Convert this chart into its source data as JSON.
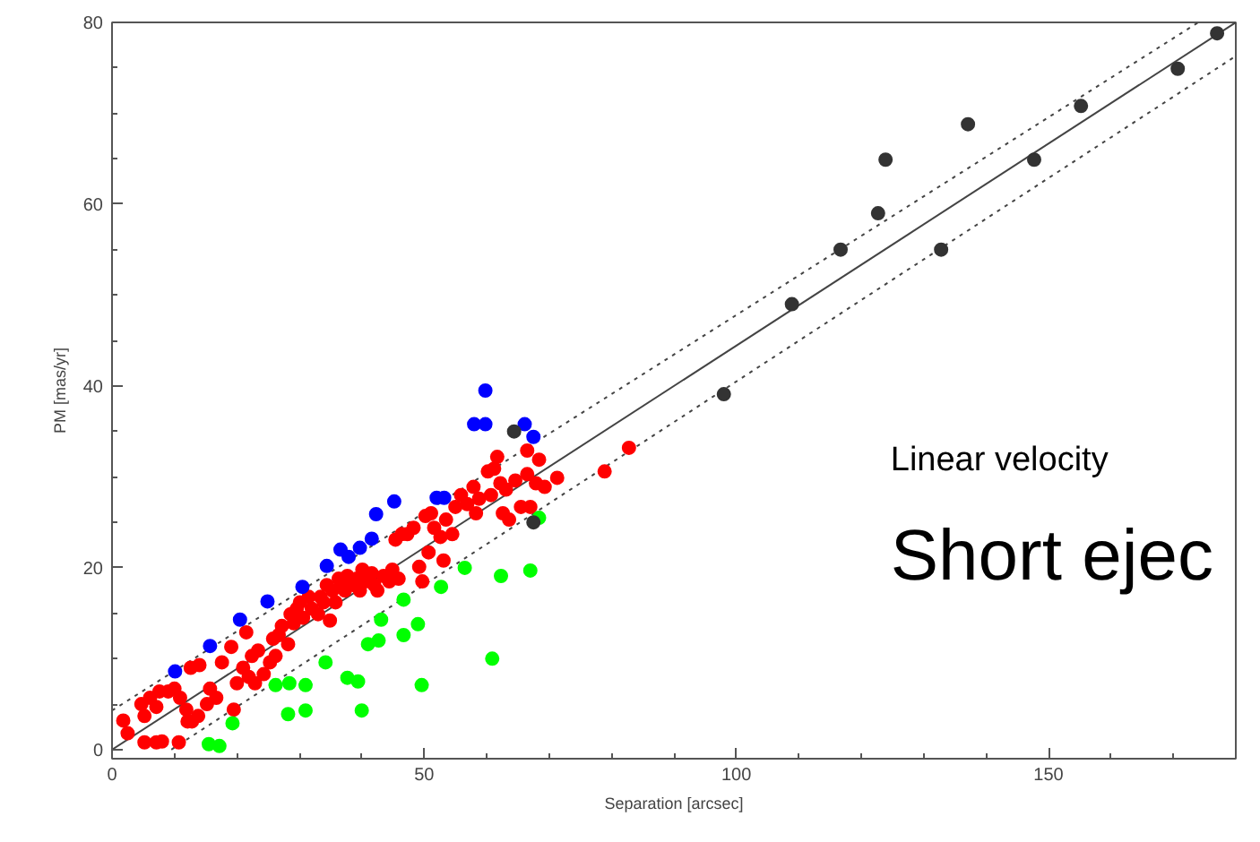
{
  "chart_data": {
    "type": "scatter",
    "xlabel": "Separation [arcsec]",
    "ylabel": "PM [mas/yr]",
    "xlim": [
      0,
      180
    ],
    "ylim": [
      -1,
      80
    ],
    "xticks": [
      0,
      50,
      100,
      150
    ],
    "yticks": [
      0,
      20,
      40,
      60,
      80
    ],
    "grid": false,
    "marker": "circle",
    "annotations": [
      "Linear velocity",
      "Short ejec"
    ],
    "series": [
      {
        "type": "line",
        "color": "#444444",
        "line_style": "solid",
        "marker": "none",
        "x": [
          0,
          180
        ],
        "values": [
          0,
          80
        ]
      },
      {
        "type": "line",
        "color": "#444444",
        "line_style": "dotted",
        "marker": "none",
        "x": [
          0,
          174
        ],
        "values": [
          4.3,
          80
        ]
      },
      {
        "type": "line",
        "color": "#444444",
        "line_style": "dotted",
        "marker": "none",
        "x": [
          9.5,
          180
        ],
        "values": [
          0,
          76.3
        ]
      },
      {
        "color": "#ff0000",
        "x": [
          1.8,
          2.5,
          4.7,
          5.2,
          6.1,
          7.1,
          7.6,
          9.0,
          10.0,
          10.9,
          5.2,
          7.1,
          8.0,
          10.7,
          11.9,
          12.8,
          13.8,
          12.6,
          14.0,
          12.1,
          15.2,
          15.7,
          16.7,
          17.6,
          19.1,
          19.5,
          20.0,
          21.0,
          21.5,
          21.9,
          22.4,
          22.9,
          23.4,
          24.3,
          25.3,
          25.8,
          26.2,
          26.7,
          27.2,
          28.2,
          28.6,
          29.1,
          29.6,
          30.1,
          30.6,
          31.5,
          32.0,
          33.0,
          33.4,
          33.9,
          34.4,
          34.9,
          35.3,
          35.8,
          36.3,
          36.8,
          37.3,
          37.7,
          38.7,
          39.2,
          39.7,
          40.1,
          40.6,
          41.6,
          42.0,
          42.5,
          43.5,
          44.4,
          44.9,
          45.9,
          45.4,
          46.4,
          47.3,
          48.3,
          49.2,
          49.7,
          50.2,
          50.7,
          51.1,
          51.6,
          52.6,
          53.1,
          53.5,
          54.5,
          55.0,
          55.9,
          56.9,
          57.9,
          58.3,
          58.8,
          60.2,
          60.7,
          61.2,
          61.7,
          62.2,
          62.6,
          63.1,
          63.6,
          64.6,
          65.5,
          66.5,
          66.5,
          67.0,
          67.9,
          68.4,
          69.3,
          71.3,
          78.9,
          82.8
        ],
        "values": [
          3.2,
          1.8,
          5.0,
          3.7,
          5.7,
          4.7,
          6.4,
          6.4,
          6.7,
          5.7,
          0.8,
          0.8,
          0.9,
          0.8,
          4.4,
          3.1,
          3.7,
          9.0,
          9.3,
          3.1,
          5.0,
          6.7,
          5.7,
          9.6,
          11.3,
          4.4,
          7.3,
          9.0,
          12.9,
          8.0,
          10.3,
          7.3,
          10.9,
          8.3,
          9.6,
          12.2,
          10.3,
          12.6,
          13.6,
          11.6,
          14.9,
          13.9,
          15.5,
          16.2,
          14.5,
          16.8,
          15.5,
          14.9,
          16.8,
          16.2,
          18.1,
          14.2,
          17.5,
          16.2,
          18.8,
          18.1,
          17.5,
          19.1,
          18.1,
          18.8,
          17.5,
          19.8,
          18.5,
          19.4,
          18.1,
          17.5,
          19.1,
          18.5,
          19.8,
          18.8,
          23.1,
          23.7,
          23.7,
          24.4,
          20.1,
          18.5,
          25.7,
          21.7,
          26.0,
          24.4,
          23.4,
          20.8,
          25.3,
          23.7,
          26.7,
          28.0,
          27.0,
          28.9,
          26.0,
          27.6,
          30.6,
          28.0,
          30.9,
          32.2,
          29.3,
          26.0,
          28.6,
          25.3,
          29.6,
          26.7,
          30.3,
          32.9,
          26.7,
          29.3,
          31.9,
          28.9,
          29.9,
          30.6,
          33.2
        ]
      },
      {
        "color": "#0000ff",
        "x": [
          59.8,
          58.0,
          59.8,
          66.1,
          67.5,
          52.0,
          53.2,
          45.2,
          42.3,
          41.6,
          39.7,
          37.9,
          36.6,
          34.4,
          30.5,
          24.9,
          20.5,
          15.7,
          10.1
        ],
        "values": [
          39.5,
          35.8,
          35.8,
          35.8,
          34.4,
          27.7,
          27.7,
          27.3,
          25.9,
          23.2,
          22.2,
          21.2,
          22.0,
          20.2,
          17.9,
          16.3,
          14.3,
          11.4,
          8.6
        ]
      },
      {
        "color": "#00ff00",
        "x": [
          68.4,
          67.0,
          62.3,
          56.5,
          52.7,
          60.9,
          49.6,
          49.0,
          46.7,
          46.7,
          43.1,
          42.7,
          41.0,
          40.0,
          39.4,
          37.7,
          34.2,
          31.0,
          31.0,
          28.4,
          28.2,
          26.2,
          19.3,
          15.5,
          17.2
        ],
        "values": [
          25.5,
          19.7,
          19.1,
          20.0,
          17.9,
          10.0,
          7.1,
          13.8,
          16.5,
          12.6,
          14.3,
          12.0,
          11.6,
          4.3,
          7.5,
          7.9,
          9.6,
          7.1,
          4.3,
          7.3,
          3.9,
          7.1,
          2.9,
          0.6,
          0.4
        ]
      },
      {
        "color": "#333333",
        "x": [
          177.0,
          170.7,
          155.2,
          137.1,
          147.7,
          123.9,
          122.7,
          116.7,
          132.8,
          108.9,
          98.0,
          64.4,
          67.5
        ],
        "values": [
          78.8,
          74.9,
          70.8,
          68.8,
          64.9,
          64.9,
          59.0,
          55.0,
          55.0,
          49.0,
          39.1,
          35.0,
          25.0
        ]
      }
    ]
  }
}
